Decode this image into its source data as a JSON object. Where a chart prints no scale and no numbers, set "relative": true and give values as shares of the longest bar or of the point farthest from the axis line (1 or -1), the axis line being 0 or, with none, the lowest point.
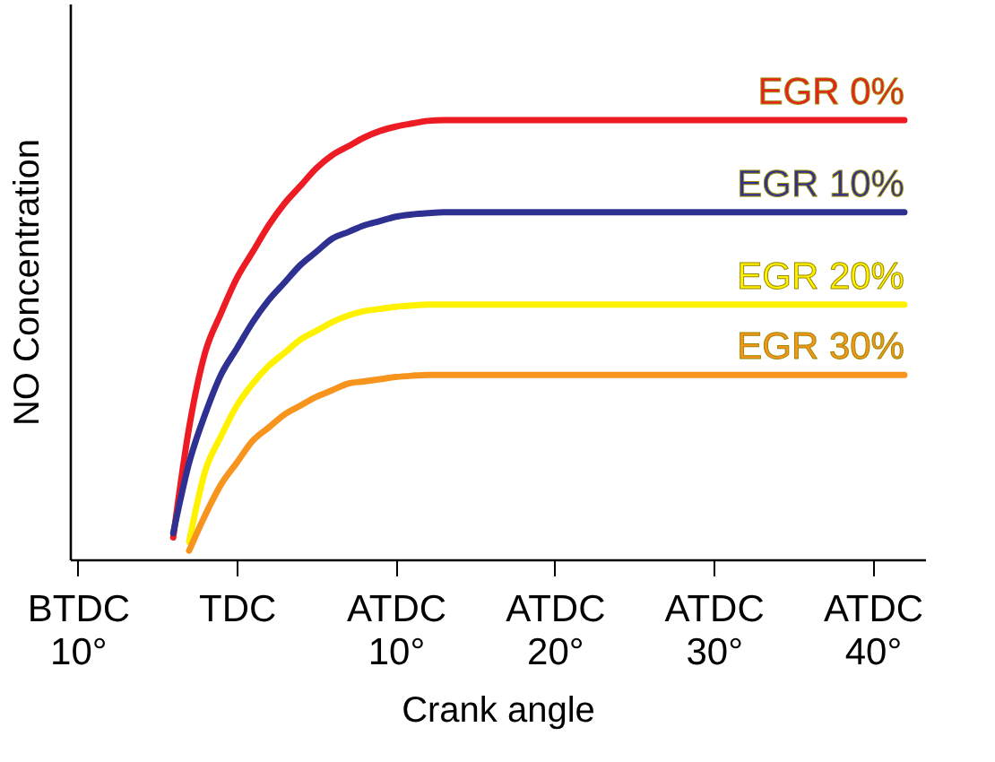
{
  "chart_data": {
    "type": "line",
    "xlabel": "Crank angle",
    "ylabel": "NO Concentration",
    "relative": true,
    "categories": [
      "BTDC\n10°",
      null,
      null,
      null,
      null,
      null,
      null,
      null,
      null,
      null,
      "TDC",
      null,
      null,
      null,
      null,
      null,
      null,
      null,
      null,
      null,
      "ATDC\n10°",
      null,
      null,
      null,
      null,
      null,
      null,
      null,
      null,
      null,
      "ATDC\n20°",
      null,
      null,
      null,
      null,
      null,
      null,
      null,
      null,
      null,
      "ATDC\n30°",
      null,
      null,
      null,
      null,
      null,
      null,
      null,
      null,
      null,
      "ATDC\n40°",
      null,
      null
    ],
    "grid": false,
    "legend": false,
    "marker": "none",
    "line_style": "solid",
    "series": [
      {
        "name": "EGR 0%",
        "color": "#ed1c24",
        "values": [
          null,
          null,
          null,
          null,
          null,
          null,
          0.05,
          0.3,
          0.47,
          0.56,
          0.64,
          0.7,
          0.76,
          0.81,
          0.85,
          0.89,
          0.92,
          0.94,
          0.96,
          0.975,
          0.985,
          0.992,
          0.998,
          1,
          1,
          1,
          1,
          1,
          1,
          1,
          1,
          1,
          1,
          1,
          1,
          1,
          1,
          1,
          1,
          1,
          1,
          1,
          1,
          1,
          1,
          1,
          1,
          1,
          1,
          1,
          1,
          1,
          1
        ]
      },
      {
        "name": "EGR 10%",
        "color": "#2e3192",
        "values": [
          null,
          null,
          null,
          null,
          null,
          null,
          0.06,
          0.22,
          0.33,
          0.42,
          0.48,
          0.54,
          0.59,
          0.63,
          0.67,
          0.7,
          0.73,
          0.745,
          0.76,
          0.77,
          0.78,
          0.785,
          0.788,
          0.79,
          0.79,
          0.79,
          0.79,
          0.79,
          0.79,
          0.79,
          0.79,
          0.79,
          0.79,
          0.79,
          0.79,
          0.79,
          0.79,
          0.79,
          0.79,
          0.79,
          0.79,
          0.79,
          0.79,
          0.79,
          0.79,
          0.79,
          0.79,
          0.79,
          0.79,
          0.79,
          0.79,
          0.79,
          0.79
        ]
      },
      {
        "name": "EGR 20%",
        "color": "#fff200",
        "values": [
          null,
          null,
          null,
          null,
          null,
          null,
          null,
          0.04,
          0.2,
          0.28,
          0.35,
          0.4,
          0.44,
          0.47,
          0.5,
          0.52,
          0.54,
          0.555,
          0.565,
          0.57,
          0.575,
          0.578,
          0.58,
          0.58,
          0.58,
          0.58,
          0.58,
          0.58,
          0.58,
          0.58,
          0.58,
          0.58,
          0.58,
          0.58,
          0.58,
          0.58,
          0.58,
          0.58,
          0.58,
          0.58,
          0.58,
          0.58,
          0.58,
          0.58,
          0.58,
          0.58,
          0.58,
          0.58,
          0.58,
          0.58,
          0.58,
          0.58,
          0.58
        ]
      },
      {
        "name": "EGR 30%",
        "color": "#f7941d",
        "values": [
          null,
          null,
          null,
          null,
          null,
          null,
          null,
          0.02,
          0.1,
          0.17,
          0.22,
          0.27,
          0.3,
          0.33,
          0.35,
          0.37,
          0.385,
          0.4,
          0.405,
          0.41,
          0.415,
          0.418,
          0.42,
          0.42,
          0.42,
          0.42,
          0.42,
          0.42,
          0.42,
          0.42,
          0.42,
          0.42,
          0.42,
          0.42,
          0.42,
          0.42,
          0.42,
          0.42,
          0.42,
          0.42,
          0.42,
          0.42,
          0.42,
          0.42,
          0.42,
          0.42,
          0.42,
          0.42,
          0.42,
          0.42,
          0.42,
          0.42,
          0.42
        ]
      }
    ]
  }
}
